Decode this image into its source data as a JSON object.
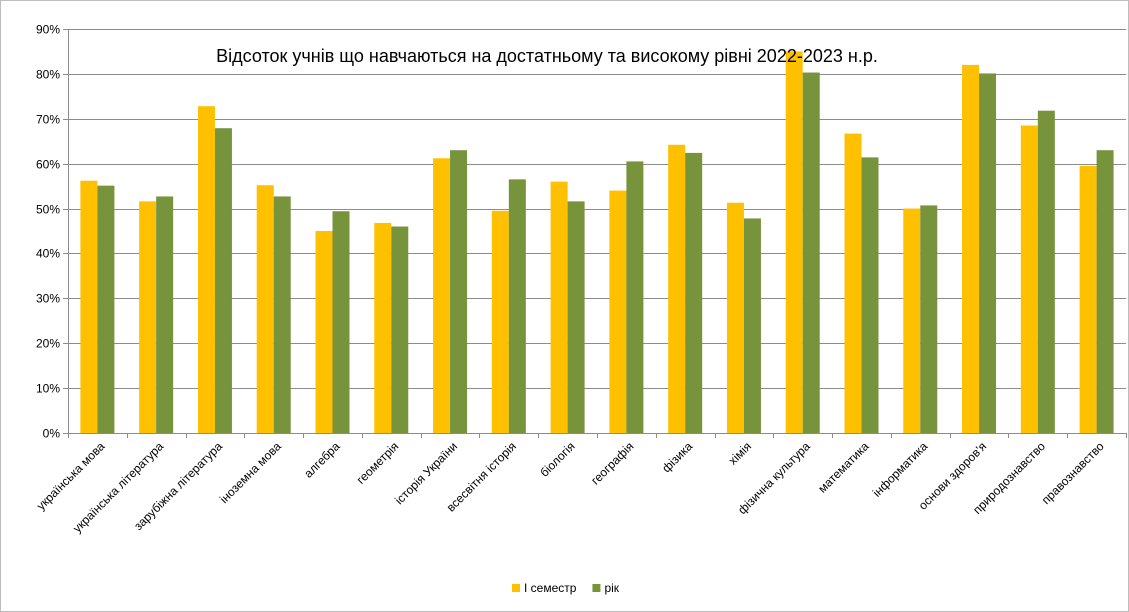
{
  "chart_data": {
    "type": "bar",
    "title": "Відсоток учнів що навчаються на достатньому та високому рівні 2022-2023 н.р.",
    "xlabel": "",
    "ylabel": "",
    "ylim": [
      0,
      90
    ],
    "yticks": [
      "0%",
      "10%",
      "20%",
      "30%",
      "40%",
      "50%",
      "60%",
      "70%",
      "80%",
      "90%"
    ],
    "grid": true,
    "legend_position": "bottom",
    "categories": [
      "українська мова",
      "українська література",
      "зарубіжна література",
      "іноземна мова",
      "алгебра",
      "геометрія",
      "історія України",
      "всесвітня історія",
      "біологія",
      "географія",
      "фізика",
      "хімія",
      "фізична культура",
      "математика",
      "інформатика",
      "основи здоров'я",
      "природознавство",
      "правознавство"
    ],
    "series": [
      {
        "name": "І семестр",
        "color": "#ffc000",
        "values": [
          56.2,
          51.6,
          72.8,
          55.2,
          45.0,
          46.8,
          61.2,
          49.5,
          56.0,
          54.0,
          64.2,
          51.3,
          85.0,
          66.7,
          50.0,
          82.0,
          68.5,
          59.5
        ]
      },
      {
        "name": "рік",
        "color": "#77933c",
        "values": [
          55.1,
          52.7,
          67.9,
          52.7,
          49.4,
          46.0,
          63.0,
          56.5,
          51.6,
          60.5,
          62.4,
          47.8,
          80.3,
          61.4,
          50.7,
          80.1,
          71.8,
          63.0
        ]
      }
    ]
  }
}
